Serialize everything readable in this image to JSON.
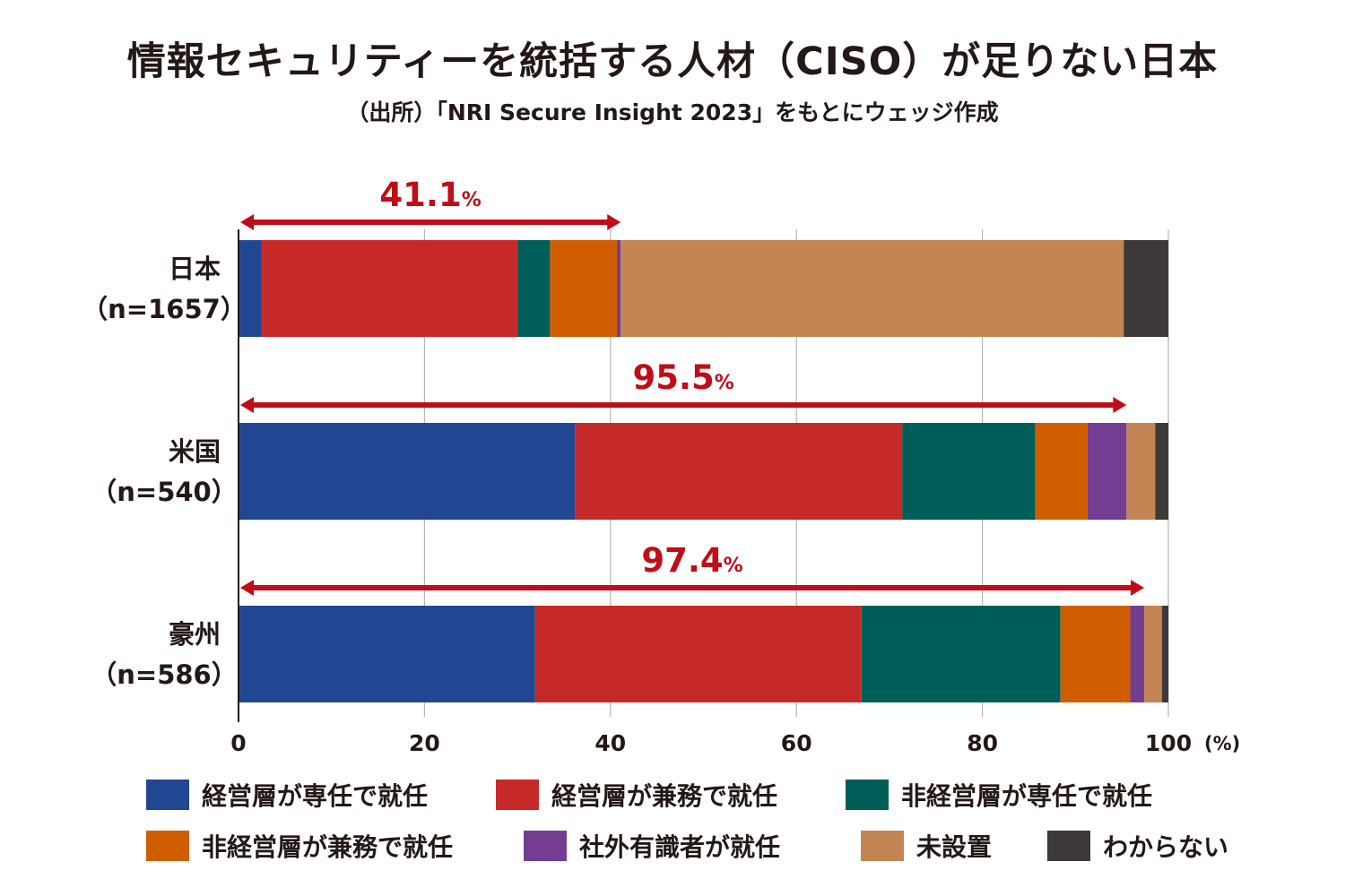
{
  "title": "情報セキュリティーを統括する人材（CISO）が足りない日本",
  "subtitle": "（出所）「NRI Secure Insight 2023」をもとにウェッジ作成",
  "chart_data": {
    "type": "bar",
    "orientation": "horizontal",
    "stacked": true,
    "title": "情報セキュリティーを統括する人材（CISO）が足りない日本",
    "xlabel": "(%)",
    "xlim": [
      0,
      100
    ],
    "xticks": [
      0,
      20,
      40,
      60,
      80,
      100
    ],
    "tick_labels": [
      "0",
      "20",
      "40",
      "60",
      "80",
      "100"
    ],
    "unit_label": "(%)",
    "grid": true,
    "categories": [
      {
        "name": "日本",
        "n": "（n=1657）"
      },
      {
        "name": "米国",
        "n": "（n=540）"
      },
      {
        "name": "豪州",
        "n": "（n=586）"
      }
    ],
    "series": [
      {
        "name": "経営層が専任で就任",
        "color": "#224792",
        "values": [
          2.5,
          36.2,
          31.9
        ]
      },
      {
        "name": "経営層が兼務で就任",
        "color": "#C62A28",
        "values": [
          27.5,
          35.2,
          35.1
        ]
      },
      {
        "name": "非経営層が専任で就任",
        "color": "#005E59",
        "values": [
          3.5,
          14.3,
          21.4
        ]
      },
      {
        "name": "非経営層が兼務で就任",
        "color": "#D05E00",
        "values": [
          7.2,
          5.6,
          7.5
        ]
      },
      {
        "name": "社外有識者が就任",
        "color": "#733D92",
        "values": [
          0.4,
          4.2,
          1.5
        ]
      },
      {
        "name": "未設置",
        "color": "#C38553",
        "values": [
          54.1,
          3.1,
          1.9
        ]
      },
      {
        "name": "わからない",
        "color": "#3D3938",
        "values": [
          4.8,
          1.4,
          0.7
        ]
      }
    ],
    "annotations": [
      {
        "category": "日本",
        "value": 41.1,
        "num": "41.1",
        "unit": "%"
      },
      {
        "category": "米国",
        "value": 95.5,
        "num": "95.5",
        "unit": "%"
      },
      {
        "category": "豪州",
        "value": 97.4,
        "num": "97.4",
        "unit": "%"
      }
    ],
    "annotation_color": "#C00D17"
  }
}
